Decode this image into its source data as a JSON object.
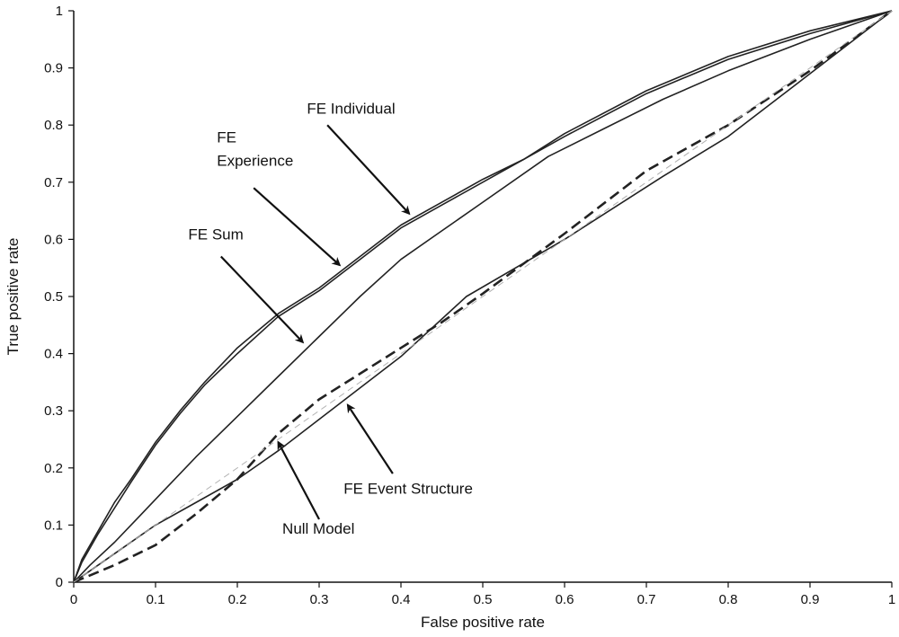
{
  "chart_data": {
    "type": "line",
    "title": "",
    "xlabel": "False positive rate",
    "ylabel": "True positive rate",
    "xlim": [
      0,
      1
    ],
    "ylim": [
      0,
      1
    ],
    "xticks": [
      "0",
      "0.1",
      "0.2",
      "0.3",
      "0.4",
      "0.5",
      "0.6",
      "0.7",
      "0.8",
      "0.9",
      "1"
    ],
    "yticks": [
      "0",
      "0.1",
      "0.2",
      "0.3",
      "0.4",
      "0.5",
      "0.6",
      "0.7",
      "0.8",
      "0.9",
      "1"
    ],
    "grid": false,
    "legend": "none",
    "series": [
      {
        "name": "FE Individual",
        "style": "solid",
        "color": "#222222",
        "points": [
          [
            0,
            0
          ],
          [
            0.01,
            0.04
          ],
          [
            0.03,
            0.09
          ],
          [
            0.05,
            0.14
          ],
          [
            0.07,
            0.18
          ],
          [
            0.1,
            0.245
          ],
          [
            0.13,
            0.3
          ],
          [
            0.16,
            0.35
          ],
          [
            0.2,
            0.41
          ],
          [
            0.25,
            0.47
          ],
          [
            0.3,
            0.515
          ],
          [
            0.35,
            0.57
          ],
          [
            0.4,
            0.625
          ],
          [
            0.45,
            0.665
          ],
          [
            0.5,
            0.705
          ],
          [
            0.55,
            0.74
          ],
          [
            0.6,
            0.785
          ],
          [
            0.7,
            0.86
          ],
          [
            0.8,
            0.92
          ],
          [
            0.9,
            0.965
          ],
          [
            1,
            1
          ]
        ]
      },
      {
        "name": "FE Experience",
        "style": "solid",
        "color": "#222222",
        "points": [
          [
            0,
            0
          ],
          [
            0.01,
            0.035
          ],
          [
            0.03,
            0.085
          ],
          [
            0.05,
            0.13
          ],
          [
            0.07,
            0.175
          ],
          [
            0.1,
            0.24
          ],
          [
            0.13,
            0.295
          ],
          [
            0.16,
            0.345
          ],
          [
            0.2,
            0.4
          ],
          [
            0.25,
            0.465
          ],
          [
            0.3,
            0.51
          ],
          [
            0.35,
            0.565
          ],
          [
            0.4,
            0.62
          ],
          [
            0.45,
            0.66
          ],
          [
            0.5,
            0.7
          ],
          [
            0.55,
            0.74
          ],
          [
            0.6,
            0.78
          ],
          [
            0.7,
            0.855
          ],
          [
            0.8,
            0.915
          ],
          [
            0.9,
            0.96
          ],
          [
            1,
            1
          ]
        ]
      },
      {
        "name": "FE Sum",
        "style": "solid",
        "color": "#222222",
        "points": [
          [
            0,
            0
          ],
          [
            0.02,
            0.03
          ],
          [
            0.05,
            0.07
          ],
          [
            0.08,
            0.115
          ],
          [
            0.11,
            0.16
          ],
          [
            0.15,
            0.22
          ],
          [
            0.2,
            0.29
          ],
          [
            0.25,
            0.36
          ],
          [
            0.3,
            0.43
          ],
          [
            0.35,
            0.5
          ],
          [
            0.4,
            0.565
          ],
          [
            0.45,
            0.615
          ],
          [
            0.5,
            0.665
          ],
          [
            0.58,
            0.745
          ],
          [
            0.65,
            0.795
          ],
          [
            0.72,
            0.845
          ],
          [
            0.8,
            0.895
          ],
          [
            0.9,
            0.95
          ],
          [
            1,
            1
          ]
        ]
      },
      {
        "name": "FE Event Structure",
        "style": "dashed",
        "color": "#222222",
        "points": [
          [
            0,
            0
          ],
          [
            0.05,
            0.03
          ],
          [
            0.1,
            0.065
          ],
          [
            0.15,
            0.12
          ],
          [
            0.2,
            0.18
          ],
          [
            0.25,
            0.26
          ],
          [
            0.3,
            0.32
          ],
          [
            0.35,
            0.365
          ],
          [
            0.4,
            0.41
          ],
          [
            0.45,
            0.455
          ],
          [
            0.5,
            0.505
          ],
          [
            0.6,
            0.61
          ],
          [
            0.7,
            0.72
          ],
          [
            0.8,
            0.8
          ],
          [
            0.9,
            0.895
          ],
          [
            1,
            1
          ]
        ]
      },
      {
        "name": "Null Model",
        "style": "solid",
        "color": "#222222",
        "points": [
          [
            0,
            0
          ],
          [
            0.05,
            0.05
          ],
          [
            0.1,
            0.1
          ],
          [
            0.15,
            0.14
          ],
          [
            0.2,
            0.18
          ],
          [
            0.25,
            0.23
          ],
          [
            0.3,
            0.285
          ],
          [
            0.35,
            0.34
          ],
          [
            0.4,
            0.395
          ],
          [
            0.48,
            0.5
          ],
          [
            0.6,
            0.6
          ],
          [
            0.72,
            0.71
          ],
          [
            0.8,
            0.78
          ],
          [
            0.9,
            0.89
          ],
          [
            1,
            1
          ]
        ]
      },
      {
        "name": "",
        "style": "reference",
        "color": "#b0b0b0",
        "points": [
          [
            0,
            0
          ],
          [
            1,
            1
          ]
        ]
      }
    ],
    "annotations": [
      {
        "lines": [
          "FE Individual"
        ],
        "text_at": [
          0.285,
          0.82
        ],
        "anchor": "start",
        "arrow_from": [
          0.31,
          0.8
        ],
        "arrow_to": [
          0.41,
          0.645
        ]
      },
      {
        "lines": [
          "FE",
          "Experience"
        ],
        "text_at": [
          0.175,
          0.77
        ],
        "anchor": "start",
        "arrow_from": [
          0.22,
          0.69
        ],
        "arrow_to": [
          0.325,
          0.555
        ]
      },
      {
        "lines": [
          "FE Sum"
        ],
        "text_at": [
          0.14,
          0.6
        ],
        "anchor": "start",
        "arrow_from": [
          0.18,
          0.57
        ],
        "arrow_to": [
          0.28,
          0.42
        ]
      },
      {
        "lines": [
          "FE Event Structure"
        ],
        "text_at": [
          0.33,
          0.155
        ],
        "anchor": "start",
        "arrow_from": [
          0.39,
          0.19
        ],
        "arrow_to": [
          0.335,
          0.31
        ]
      },
      {
        "lines": [
          "Null Model"
        ],
        "text_at": [
          0.255,
          0.085
        ],
        "anchor": "start",
        "arrow_from": [
          0.3,
          0.11
        ],
        "arrow_to": [
          0.25,
          0.245
        ]
      }
    ]
  }
}
